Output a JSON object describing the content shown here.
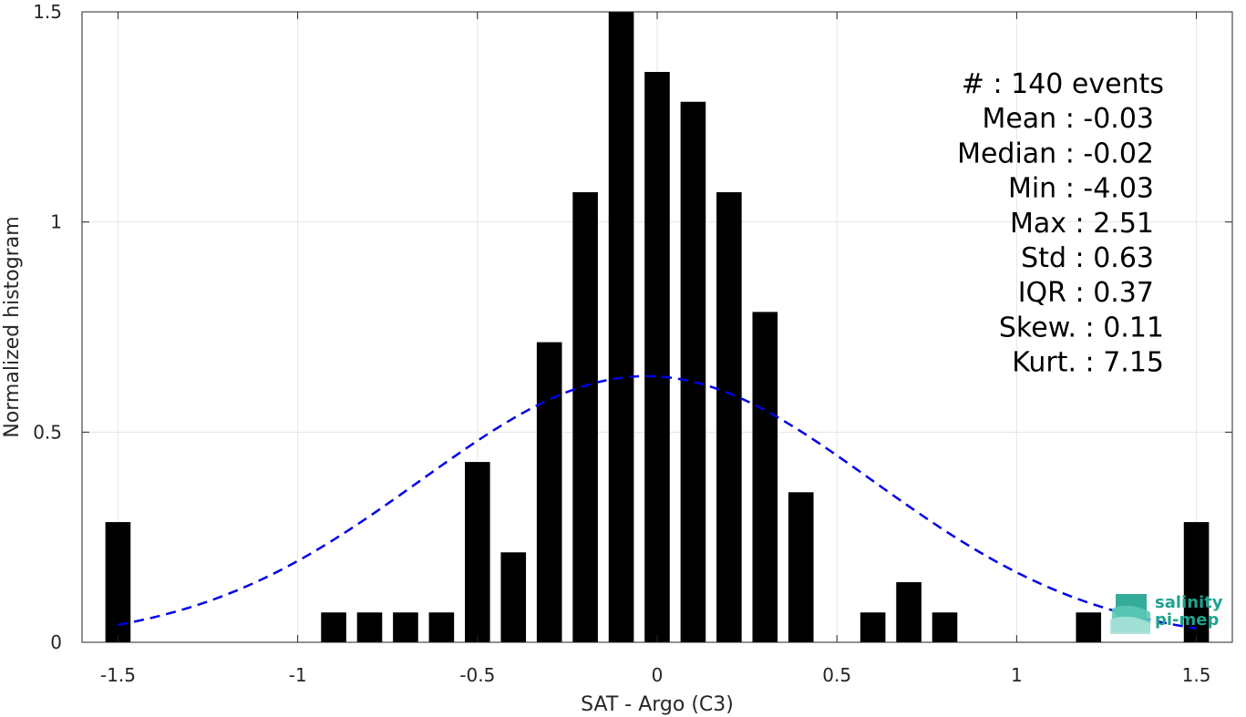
{
  "chart_data": {
    "type": "bar",
    "xlabel": "SAT - Argo (C3)",
    "ylabel": "Normalized histogram",
    "xlim": [
      -1.6,
      1.6
    ],
    "ylim": [
      0,
      1.5
    ],
    "xticks": [
      -1.5,
      -1,
      -0.5,
      0,
      0.5,
      1,
      1.5
    ],
    "xtick_labels": [
      "-1.5",
      "-1",
      "-0.5",
      "0",
      "0.5",
      "1",
      "1.5"
    ],
    "yticks": [
      0,
      0.5,
      1,
      1.5
    ],
    "ytick_labels": [
      "0",
      "0.5",
      "1",
      "1.5"
    ],
    "grid": true,
    "bar_width": 0.07,
    "bars": [
      {
        "x": -1.5,
        "y": 0.286
      },
      {
        "x": -0.9,
        "y": 0.071
      },
      {
        "x": -0.8,
        "y": 0.071
      },
      {
        "x": -0.7,
        "y": 0.071
      },
      {
        "x": -0.6,
        "y": 0.071
      },
      {
        "x": -0.5,
        "y": 0.429
      },
      {
        "x": -0.4,
        "y": 0.214
      },
      {
        "x": -0.3,
        "y": 0.714
      },
      {
        "x": -0.2,
        "y": 1.071
      },
      {
        "x": -0.1,
        "y": 1.5
      },
      {
        "x": 0.0,
        "y": 1.357
      },
      {
        "x": 0.1,
        "y": 1.286
      },
      {
        "x": 0.2,
        "y": 1.071
      },
      {
        "x": 0.3,
        "y": 0.786
      },
      {
        "x": 0.4,
        "y": 0.357
      },
      {
        "x": 0.6,
        "y": 0.071
      },
      {
        "x": 0.7,
        "y": 0.143
      },
      {
        "x": 0.8,
        "y": 0.071
      },
      {
        "x": 1.2,
        "y": 0.071
      },
      {
        "x": 1.5,
        "y": 0.286
      }
    ],
    "gaussian_fit": {
      "mean": -0.03,
      "std": 0.63,
      "x_range": [
        -1.5,
        1.5
      ],
      "style": "dashed",
      "color": "#0000e6"
    },
    "bar_color": "#000000"
  },
  "stats": [
    {
      "text": "#  : 140 events",
      "right": false
    },
    {
      "text": "Mean : -0.03",
      "right": true
    },
    {
      "text": "Median : -0.02",
      "right": true
    },
    {
      "text": "Min : -4.03",
      "right": true
    },
    {
      "text": "Max : 2.51",
      "right": true
    },
    {
      "text": "Std : 0.63",
      "right": true
    },
    {
      "text": "IQR : 0.37",
      "right": true
    },
    {
      "text": "Skew. : 0.11",
      "right": false
    },
    {
      "text": "Kurt. : 7.15",
      "right": false
    }
  ],
  "logo": {
    "line1": "salinity",
    "line2": "pi-mep",
    "color": "#1fa38f"
  }
}
